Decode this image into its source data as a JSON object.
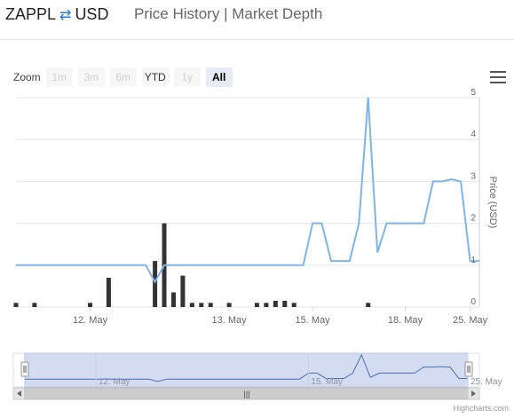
{
  "header": {
    "base": "ZAPPL",
    "swap_icon": "⇄",
    "quote": "USD",
    "link_history": "Price History",
    "separator": "|",
    "link_depth": "Market Depth"
  },
  "zoom": {
    "label": "Zoom",
    "buttons": [
      {
        "label": "1m",
        "enabled": false,
        "active": false
      },
      {
        "label": "3m",
        "enabled": false,
        "active": false
      },
      {
        "label": "6m",
        "enabled": false,
        "active": false
      },
      {
        "label": "YTD",
        "enabled": true,
        "active": false
      },
      {
        "label": "1y",
        "enabled": false,
        "active": false
      },
      {
        "label": "All",
        "enabled": true,
        "active": true
      }
    ]
  },
  "credit": "Highcharts.com",
  "navigator": {
    "tick_labels": [
      "12. May",
      "15. May",
      "25. May"
    ],
    "scrollbar_grip": "|||"
  },
  "colors": {
    "line": "#7cb5ec",
    "volume": "#333333",
    "navigator_fill": "#d3dcf0",
    "grid": "#e6e6e6"
  },
  "chart_data": {
    "type": "line",
    "ylabel": "Price (USD)",
    "yticks": [
      "0",
      "1",
      "2",
      "3",
      "4",
      "5"
    ],
    "ylim": [
      0,
      5
    ],
    "x_tick_labels": [
      "12. May",
      "13. May",
      "15. May",
      "18. May",
      "25. May"
    ],
    "series": [
      {
        "kind": "line",
        "values": [
          1,
          1,
          1,
          1,
          1,
          1,
          1,
          1,
          1,
          1,
          1,
          1,
          1,
          1,
          1,
          0.6,
          1,
          1,
          1,
          1,
          1,
          1,
          1,
          1,
          1,
          1,
          1,
          1,
          1,
          1,
          1,
          1,
          2,
          2,
          1.1,
          1.1,
          1.1,
          2,
          5,
          1.3,
          2,
          2,
          2,
          2,
          2,
          3,
          3,
          3.05,
          3,
          1.1,
          1.1
        ]
      },
      {
        "kind": "volume",
        "values": [
          0.1,
          0,
          0.1,
          0,
          0,
          0,
          0,
          0,
          0.1,
          0,
          0.7,
          0,
          0,
          0,
          0,
          1.1,
          2,
          0.35,
          0.75,
          0.1,
          0.1,
          0.1,
          0,
          0.1,
          0,
          0,
          0.1,
          0.1,
          0.15,
          0.15,
          0.1,
          0,
          0,
          0,
          0,
          0,
          0,
          0,
          0.1,
          0,
          0,
          0,
          0,
          0,
          0,
          0,
          0,
          0,
          0,
          0,
          0
        ]
      }
    ]
  }
}
